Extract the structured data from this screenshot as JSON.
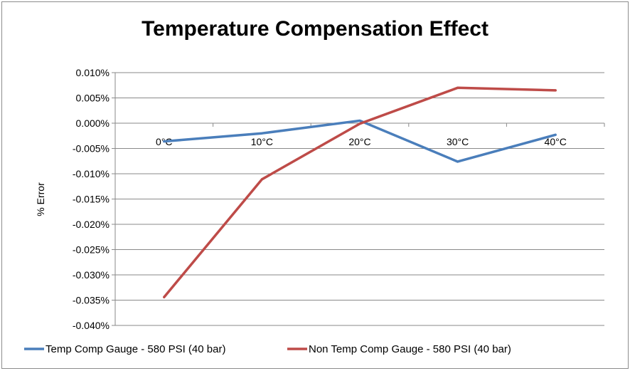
{
  "chart_data": {
    "type": "line",
    "title": "Temperature Compensation Effect",
    "xlabel": "",
    "ylabel": "% Error",
    "categories": [
      "0°C",
      "10°C",
      "20°C",
      "30°C",
      "40°C"
    ],
    "ylim": [
      -0.04,
      0.01
    ],
    "yticks": [
      "0.010%",
      "0.005%",
      "0.000%",
      "-0.005%",
      "-0.010%",
      "-0.015%",
      "-0.020%",
      "-0.025%",
      "-0.030%",
      "-0.035%",
      "-0.040%"
    ],
    "grid": true,
    "legend_position": "bottom",
    "series": [
      {
        "name": "Temp Comp Gauge - 580 PSI (40 bar)",
        "color": "#4a7ebb",
        "values": [
          -0.0036,
          -0.002,
          0.0005,
          -0.0076,
          -0.0023
        ]
      },
      {
        "name": "Non Temp Comp Gauge - 580 PSI (40 bar)",
        "color": "#be4b48",
        "values": [
          -0.0344,
          -0.0111,
          -0.0001,
          0.007,
          0.0065
        ]
      }
    ]
  }
}
